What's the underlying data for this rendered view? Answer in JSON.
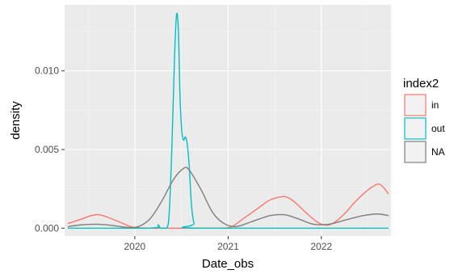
{
  "chart_data": {
    "type": "line",
    "subtype": "density",
    "title": "",
    "xlabel": "Date_obs",
    "ylabel": "density",
    "xlim": [
      "2019-04-01",
      "2022-10-01"
    ],
    "ylim": [
      -0.0005,
      0.0142
    ],
    "x_ticks": [
      {
        "value": "2020-01-01",
        "label": "2020"
      },
      {
        "value": "2021-01-01",
        "label": "2021"
      },
      {
        "value": "2022-01-01",
        "label": "2022"
      }
    ],
    "y_ticks": [
      {
        "value": 0.0,
        "label": "0.000"
      },
      {
        "value": 0.005,
        "label": "0.005"
      },
      {
        "value": 0.01,
        "label": "0.010"
      }
    ],
    "grid": true,
    "background": "#ebebeb",
    "legend": {
      "title": "index2",
      "position": "right",
      "entries": [
        {
          "label": "in",
          "color": "#f8766d"
        },
        {
          "label": "out",
          "color": "#00bfc4"
        },
        {
          "label": "NA",
          "color": "#7f7f7f"
        }
      ]
    },
    "series": [
      {
        "name": "in",
        "color": "#f8766d",
        "points": [
          [
            "2019-04-15",
            0.0003
          ],
          [
            "2019-06-01",
            0.00055
          ],
          [
            "2019-07-15",
            0.0008
          ],
          [
            "2019-08-15",
            0.00085
          ],
          [
            "2019-09-15",
            0.0007
          ],
          [
            "2019-11-01",
            0.0004
          ],
          [
            "2019-12-15",
            0.0001
          ],
          [
            "2020-01-15",
            2e-05
          ],
          [
            "2020-03-01",
            0.0
          ],
          [
            "2020-06-01",
            0.0
          ],
          [
            "2020-09-01",
            0.0
          ],
          [
            "2020-12-01",
            0.0
          ],
          [
            "2021-01-15",
            0.0001
          ],
          [
            "2021-03-01",
            0.0006
          ],
          [
            "2021-05-01",
            0.0013
          ],
          [
            "2021-06-15",
            0.0018
          ],
          [
            "2021-08-10",
            0.002
          ],
          [
            "2021-09-15",
            0.0017
          ],
          [
            "2021-11-01",
            0.001
          ],
          [
            "2021-12-15",
            0.0004
          ],
          [
            "2022-01-15",
            0.0002
          ],
          [
            "2022-02-15",
            0.0003
          ],
          [
            "2022-04-01",
            0.0009
          ],
          [
            "2022-05-15",
            0.0017
          ],
          [
            "2022-07-01",
            0.0024
          ],
          [
            "2022-08-10",
            0.0028
          ],
          [
            "2022-09-01",
            0.0026
          ],
          [
            "2022-09-20",
            0.0022
          ]
        ]
      },
      {
        "name": "out",
        "color": "#00bfc4",
        "points": [
          [
            "2019-04-15",
            0.0
          ],
          [
            "2020-03-01",
            0.0
          ],
          [
            "2020-04-01",
            0.0002
          ],
          [
            "2020-04-10",
            0.0
          ],
          [
            "2020-05-05",
            0.0
          ],
          [
            "2020-05-15",
            0.001
          ],
          [
            "2020-05-25",
            0.005
          ],
          [
            "2020-06-05",
            0.011
          ],
          [
            "2020-06-13",
            0.0136
          ],
          [
            "2020-06-20",
            0.0125
          ],
          [
            "2020-06-26",
            0.0085
          ],
          [
            "2020-07-03",
            0.0062
          ],
          [
            "2020-07-10",
            0.0056
          ],
          [
            "2020-07-17",
            0.0058
          ],
          [
            "2020-07-24",
            0.0054
          ],
          [
            "2020-08-01",
            0.004
          ],
          [
            "2020-08-10",
            0.0015
          ],
          [
            "2020-08-20",
            0.0003
          ],
          [
            "2020-09-01",
            0.0
          ],
          [
            "2022-09-20",
            0.0
          ]
        ]
      },
      {
        "name": "NA",
        "color": "#7f7f7f",
        "points": [
          [
            "2019-04-15",
            0.0001
          ],
          [
            "2019-06-01",
            0.0002
          ],
          [
            "2019-08-01",
            0.00025
          ],
          [
            "2019-10-01",
            0.00018
          ],
          [
            "2019-12-01",
            5e-05
          ],
          [
            "2020-01-15",
            0.0001
          ],
          [
            "2020-03-01",
            0.0006
          ],
          [
            "2020-04-15",
            0.0017
          ],
          [
            "2020-06-01",
            0.0031
          ],
          [
            "2020-07-10",
            0.0038
          ],
          [
            "2020-08-01",
            0.0037
          ],
          [
            "2020-09-15",
            0.0025
          ],
          [
            "2020-11-01",
            0.001
          ],
          [
            "2020-12-15",
            0.0003
          ],
          [
            "2021-02-01",
            0.0001
          ],
          [
            "2021-04-01",
            0.0004
          ],
          [
            "2021-06-15",
            0.0008
          ],
          [
            "2021-08-10",
            0.00085
          ],
          [
            "2021-10-01",
            0.0006
          ],
          [
            "2021-12-01",
            0.00025
          ],
          [
            "2022-02-01",
            0.00025
          ],
          [
            "2022-04-01",
            0.0005
          ],
          [
            "2022-06-15",
            0.0008
          ],
          [
            "2022-08-10",
            0.0009
          ],
          [
            "2022-09-20",
            0.0008
          ]
        ]
      }
    ]
  }
}
